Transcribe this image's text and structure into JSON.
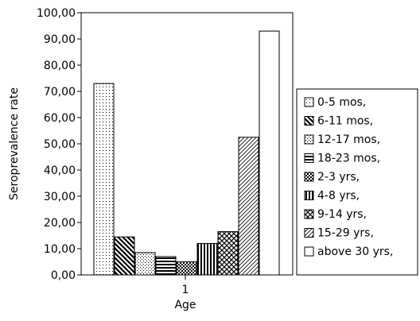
{
  "chart_data": {
    "type": "bar",
    "categories": [
      "1"
    ],
    "xlabel": "Age",
    "ylabel": "Seroprevalence rate",
    "ylim": [
      0,
      100
    ],
    "y_ticks": [
      "0,00",
      "10,00",
      "20,00",
      "30,00",
      "40,00",
      "50,00",
      "60,00",
      "70,00",
      "80,00",
      "90,00",
      "100,00"
    ],
    "legend_position": "right",
    "grid": false,
    "series": [
      {
        "name": "0-5 mos,",
        "values": [
          73.0
        ],
        "pattern": "dots"
      },
      {
        "name": "6-11 mos,",
        "values": [
          14.5
        ],
        "pattern": "diag-thick"
      },
      {
        "name": "12-17 mos,",
        "values": [
          8.5
        ],
        "pattern": "fine-grid"
      },
      {
        "name": "18-23 mos,",
        "values": [
          7.0
        ],
        "pattern": "hlines"
      },
      {
        "name": "2-3 yrs,",
        "values": [
          5.0
        ],
        "pattern": "dense-dots"
      },
      {
        "name": "4-8 yrs,",
        "values": [
          12.0
        ],
        "pattern": "vlines"
      },
      {
        "name": "9-14 yrs,",
        "values": [
          16.5
        ],
        "pattern": "crosshatch"
      },
      {
        "name": "15-29 yrs,",
        "values": [
          52.5
        ],
        "pattern": "diag-thin"
      },
      {
        "name": "above 30 yrs,",
        "values": [
          93.0
        ],
        "pattern": "empty"
      }
    ]
  }
}
